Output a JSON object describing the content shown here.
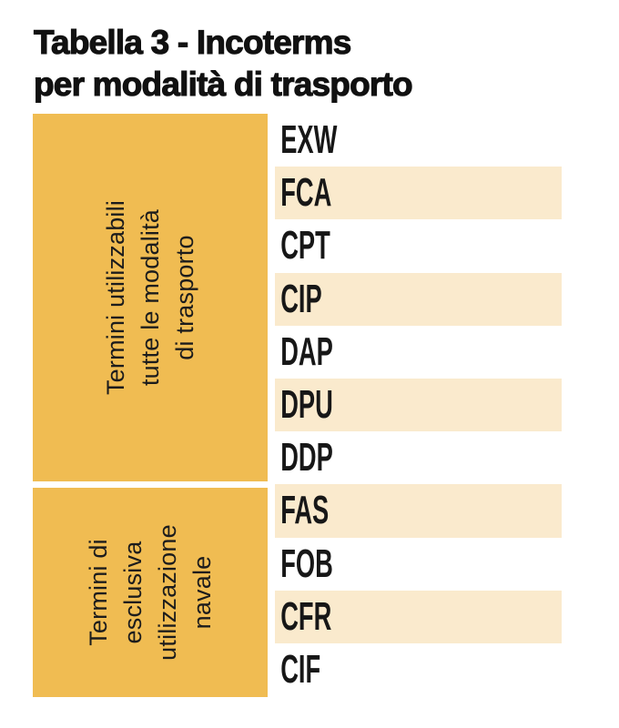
{
  "title": {
    "line1": "Tabella 3 - Incoterms",
    "line2": "per modalità di trasporto"
  },
  "groups": [
    {
      "label": "Termini utilizzabili\ntutte le modalità\ndi trasporto",
      "terms": [
        "EXW",
        "FCA",
        "CPT",
        "CIP",
        "DAP",
        "DPU",
        "DDP"
      ]
    },
    {
      "label": "Termini di\nesclusiva\nutilizzazione\nnavale",
      "terms": [
        "FAS",
        "FOB",
        "CFR",
        "CIF"
      ]
    }
  ],
  "colors": {
    "group_block": "#F0BC52",
    "row_alternate": "#FAEACD",
    "text": "#171717"
  }
}
